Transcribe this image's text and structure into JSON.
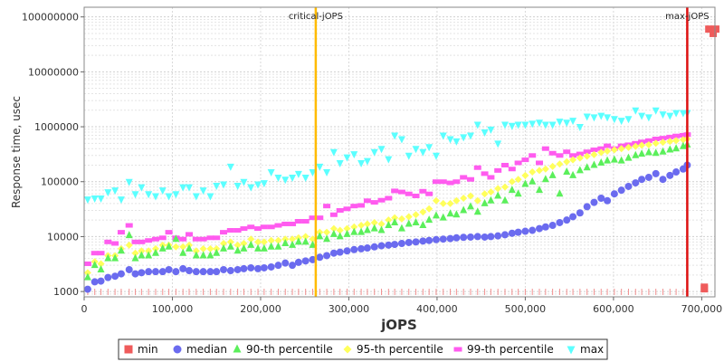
{
  "chart_data": {
    "type": "scatter",
    "xlabel": "jOPS",
    "ylabel": "Response time, usec",
    "xlim": [
      0,
      715000
    ],
    "ylim": [
      800,
      150000000
    ],
    "y_scale": "log",
    "x_ticks": [
      0,
      100000,
      200000,
      300000,
      400000,
      500000,
      600000,
      700000
    ],
    "x_tick_labels": [
      "0",
      "100,000",
      "200,000",
      "300,000",
      "400,000",
      "500,000",
      "600,000",
      "700,000"
    ],
    "y_ticks": [
      1000,
      10000,
      100000,
      1000000,
      10000000,
      100000000
    ],
    "y_tick_labels": [
      "1000",
      "10000",
      "100000",
      "1000000",
      "10000000",
      "100000000"
    ],
    "grid": true,
    "legend_position": "bottom",
    "vertical_lines": [
      {
        "label": "critical-jOPS",
        "x": 262500,
        "color": "#ffbb00"
      },
      {
        "label": "max-jOPS",
        "x": 683600,
        "color": "#dd1111"
      }
    ],
    "series": [
      {
        "name": "min",
        "color": "#ef5b5b",
        "marker": "square",
        "points": [
          [
            703000,
            1200
          ],
          [
            703000,
            1120
          ],
          [
            708000,
            60000000
          ],
          [
            713000,
            50000000
          ],
          [
            716000,
            60000000
          ]
        ]
      },
      {
        "name": "median",
        "color": "#6b6bef",
        "marker": "circle",
        "x": [
          4000,
          12000,
          19000,
          27000,
          35000,
          42000,
          51000,
          58000,
          65000,
          73000,
          81000,
          89000,
          96000,
          104000,
          112000,
          119000,
          127000,
          135000,
          143000,
          150000,
          158000,
          166000,
          174000,
          181000,
          189000,
          197000,
          204000,
          212000,
          220000,
          228000,
          236000,
          243000,
          251000,
          259000,
          267000,
          275000,
          283000,
          290000,
          298000,
          306000,
          314000,
          321000,
          329000,
          337000,
          345000,
          352000,
          360000,
          368000,
          376000,
          384000,
          391000,
          399000,
          407000,
          415000,
          422000,
          430000,
          438000,
          446000,
          454000,
          461000,
          469000,
          477000,
          485000,
          492000,
          500000,
          508000,
          516000,
          523000,
          531000,
          539000,
          547000,
          554000,
          562000,
          570000,
          578000,
          586000,
          593000,
          601000,
          609000,
          617000,
          625000,
          632000,
          640000,
          648000,
          656000,
          664000,
          671000,
          679000,
          683600
        ],
        "y": [
          1100,
          1500,
          1550,
          1800,
          1900,
          2100,
          2500,
          2100,
          2200,
          2300,
          2300,
          2300,
          2500,
          2300,
          2600,
          2400,
          2300,
          2300,
          2300,
          2300,
          2500,
          2400,
          2500,
          2600,
          2700,
          2600,
          2700,
          2800,
          3000,
          3300,
          3000,
          3400,
          3600,
          3800,
          4200,
          4500,
          5000,
          5200,
          5500,
          5800,
          6000,
          6200,
          6500,
          6800,
          7000,
          7200,
          7500,
          7800,
          8000,
          8300,
          8500,
          8800,
          9000,
          9200,
          9500,
          9700,
          9800,
          10000,
          9800,
          10000,
          10300,
          10800,
          11500,
          12000,
          12500,
          13000,
          14000,
          15000,
          16000,
          18000,
          20000,
          23000,
          27000,
          35000,
          42000,
          50000,
          45000,
          60000,
          70000,
          82000,
          95000,
          110000,
          120000,
          140000,
          110000,
          130000,
          150000,
          170000,
          200000
        ]
      },
      {
        "name": "90-th percentile",
        "color": "#5bef5b",
        "marker": "triangle-up",
        "x": [
          4000,
          12000,
          19000,
          27000,
          35000,
          42000,
          51000,
          58000,
          65000,
          73000,
          81000,
          89000,
          96000,
          104000,
          112000,
          119000,
          127000,
          135000,
          143000,
          150000,
          158000,
          166000,
          174000,
          181000,
          189000,
          197000,
          204000,
          212000,
          220000,
          228000,
          236000,
          243000,
          251000,
          259000,
          267000,
          275000,
          283000,
          290000,
          298000,
          306000,
          314000,
          321000,
          329000,
          337000,
          345000,
          352000,
          360000,
          368000,
          376000,
          384000,
          391000,
          399000,
          407000,
          415000,
          422000,
          430000,
          438000,
          446000,
          454000,
          461000,
          469000,
          477000,
          485000,
          492000,
          500000,
          508000,
          516000,
          523000,
          531000,
          539000,
          547000,
          554000,
          562000,
          570000,
          578000,
          586000,
          593000,
          601000,
          609000,
          617000,
          625000,
          632000,
          640000,
          648000,
          656000,
          664000,
          671000,
          679000,
          683600
        ],
        "y": [
          1800,
          3000,
          2500,
          4000,
          4000,
          5500,
          10500,
          4000,
          4500,
          4500,
          5000,
          6000,
          6500,
          9000,
          5000,
          6000,
          4500,
          4500,
          4500,
          5000,
          6000,
          6500,
          5500,
          6000,
          7000,
          6000,
          6000,
          6500,
          6500,
          7500,
          7000,
          8000,
          8000,
          7000,
          10000,
          9000,
          11000,
          10000,
          11000,
          12000,
          12000,
          13000,
          14000,
          13000,
          16000,
          18000,
          14000,
          17000,
          18000,
          16000,
          20000,
          24000,
          22000,
          26000,
          25000,
          30000,
          35000,
          28000,
          40000,
          45000,
          55000,
          45000,
          70000,
          60000,
          90000,
          100000,
          70000,
          110000,
          130000,
          60000,
          150000,
          130000,
          160000,
          180000,
          200000,
          220000,
          240000,
          250000,
          240000,
          270000,
          300000,
          320000,
          340000,
          330000,
          350000,
          380000,
          400000,
          440000,
          470000
        ]
      },
      {
        "name": "95-th percentile",
        "color": "#ffff5b",
        "marker": "diamond",
        "x": [
          4000,
          12000,
          19000,
          27000,
          35000,
          42000,
          51000,
          58000,
          65000,
          73000,
          81000,
          89000,
          96000,
          104000,
          112000,
          119000,
          127000,
          135000,
          143000,
          150000,
          158000,
          166000,
          174000,
          181000,
          189000,
          197000,
          204000,
          212000,
          220000,
          228000,
          236000,
          243000,
          251000,
          259000,
          267000,
          275000,
          283000,
          290000,
          298000,
          306000,
          314000,
          321000,
          329000,
          337000,
          345000,
          352000,
          360000,
          368000,
          376000,
          384000,
          391000,
          399000,
          407000,
          415000,
          422000,
          430000,
          438000,
          446000,
          454000,
          461000,
          469000,
          477000,
          485000,
          492000,
          500000,
          508000,
          516000,
          523000,
          531000,
          539000,
          547000,
          554000,
          562000,
          570000,
          578000,
          586000,
          593000,
          601000,
          609000,
          617000,
          625000,
          632000,
          640000,
          648000,
          656000,
          664000,
          671000,
          679000,
          683600
        ],
        "y": [
          2200,
          3500,
          3200,
          4500,
          4500,
          6000,
          7000,
          5000,
          5500,
          5500,
          6000,
          7000,
          7000,
          6500,
          6500,
          7000,
          5500,
          6000,
          6000,
          6000,
          7500,
          8000,
          7000,
          7500,
          9000,
          8000,
          8000,
          8500,
          8500,
          9000,
          9000,
          9500,
          10000,
          9000,
          12000,
          12000,
          14000,
          13000,
          14000,
          15000,
          16000,
          17000,
          18000,
          17000,
          20000,
          22000,
          21000,
          23000,
          25000,
          28000,
          32000,
          45000,
          40000,
          40000,
          45000,
          50000,
          55000,
          45000,
          60000,
          65000,
          75000,
          80000,
          100000,
          110000,
          130000,
          150000,
          160000,
          170000,
          190000,
          210000,
          230000,
          250000,
          270000,
          290000,
          310000,
          340000,
          360000,
          380000,
          400000,
          420000,
          440000,
          460000,
          470000,
          500000,
          520000,
          540000,
          560000,
          580000,
          600000
        ]
      },
      {
        "name": "99-th percentile",
        "color": "#ff5bef",
        "marker": "dash",
        "x": [
          4000,
          12000,
          19000,
          27000,
          35000,
          42000,
          51000,
          58000,
          65000,
          73000,
          81000,
          89000,
          96000,
          104000,
          112000,
          119000,
          127000,
          135000,
          143000,
          150000,
          158000,
          166000,
          174000,
          181000,
          189000,
          197000,
          204000,
          212000,
          220000,
          228000,
          236000,
          243000,
          251000,
          259000,
          267000,
          275000,
          283000,
          290000,
          298000,
          306000,
          314000,
          321000,
          329000,
          337000,
          345000,
          352000,
          360000,
          368000,
          376000,
          384000,
          391000,
          399000,
          407000,
          415000,
          422000,
          430000,
          438000,
          446000,
          454000,
          461000,
          469000,
          477000,
          485000,
          492000,
          500000,
          508000,
          516000,
          523000,
          531000,
          539000,
          547000,
          554000,
          562000,
          570000,
          578000,
          586000,
          593000,
          601000,
          609000,
          617000,
          625000,
          632000,
          640000,
          648000,
          656000,
          664000,
          671000,
          679000,
          683600
        ],
        "y": [
          3200,
          5000,
          5000,
          8000,
          7500,
          12000,
          16000,
          8000,
          8000,
          8500,
          9000,
          9500,
          12000,
          9500,
          9000,
          11000,
          9000,
          9000,
          9500,
          9500,
          12000,
          13000,
          13000,
          14000,
          15000,
          14000,
          15000,
          15000,
          16000,
          17000,
          17000,
          19000,
          19000,
          22000,
          22000,
          36000,
          25000,
          30000,
          32000,
          36000,
          37000,
          45000,
          42000,
          46000,
          50000,
          68000,
          65000,
          60000,
          55000,
          67000,
          60000,
          100000,
          100000,
          95000,
          100000,
          120000,
          110000,
          180000,
          140000,
          120000,
          160000,
          200000,
          170000,
          220000,
          250000,
          300000,
          220000,
          400000,
          330000,
          300000,
          350000,
          300000,
          320000,
          350000,
          380000,
          400000,
          450000,
          400000,
          450000,
          470000,
          500000,
          530000,
          560000,
          600000,
          620000,
          650000,
          680000,
          700000,
          720000
        ]
      },
      {
        "name": "max",
        "color": "#5bffff",
        "marker": "triangle-down",
        "x": [
          4000,
          12000,
          19000,
          27000,
          35000,
          42000,
          51000,
          58000,
          65000,
          73000,
          81000,
          89000,
          96000,
          104000,
          112000,
          119000,
          127000,
          135000,
          143000,
          150000,
          158000,
          166000,
          174000,
          181000,
          189000,
          197000,
          204000,
          212000,
          220000,
          228000,
          236000,
          243000,
          251000,
          259000,
          267000,
          275000,
          283000,
          290000,
          298000,
          306000,
          314000,
          321000,
          329000,
          337000,
          345000,
          352000,
          360000,
          368000,
          376000,
          384000,
          391000,
          399000,
          407000,
          415000,
          422000,
          430000,
          438000,
          446000,
          454000,
          461000,
          469000,
          477000,
          485000,
          492000,
          500000,
          508000,
          516000,
          523000,
          531000,
          539000,
          547000,
          554000,
          562000,
          570000,
          578000,
          586000,
          593000,
          601000,
          609000,
          617000,
          625000,
          632000,
          640000,
          648000,
          656000,
          664000,
          671000,
          679000,
          683600
        ],
        "y": [
          48000,
          50000,
          50000,
          65000,
          70000,
          48000,
          100000,
          60000,
          80000,
          60000,
          55000,
          70000,
          55000,
          60000,
          80000,
          80000,
          55000,
          70000,
          55000,
          85000,
          90000,
          190000,
          85000,
          100000,
          80000,
          90000,
          95000,
          150000,
          120000,
          110000,
          120000,
          140000,
          120000,
          150000,
          190000,
          150000,
          350000,
          220000,
          280000,
          320000,
          220000,
          240000,
          350000,
          400000,
          260000,
          700000,
          600000,
          300000,
          400000,
          350000,
          430000,
          300000,
          700000,
          600000,
          550000,
          650000,
          700000,
          1100000,
          800000,
          900000,
          500000,
          1100000,
          1050000,
          1100000,
          1100000,
          1150000,
          1200000,
          1100000,
          1100000,
          1250000,
          1200000,
          1300000,
          1000000,
          1550000,
          1500000,
          1600000,
          1500000,
          1400000,
          1300000,
          1400000,
          2000000,
          1600000,
          1500000,
          2000000,
          1700000,
          1600000,
          1800000,
          1800000,
          1800000
        ]
      }
    ],
    "legend": [
      "min",
      "median",
      "90-th percentile",
      "95-th percentile",
      "99-th percentile",
      "max"
    ]
  }
}
